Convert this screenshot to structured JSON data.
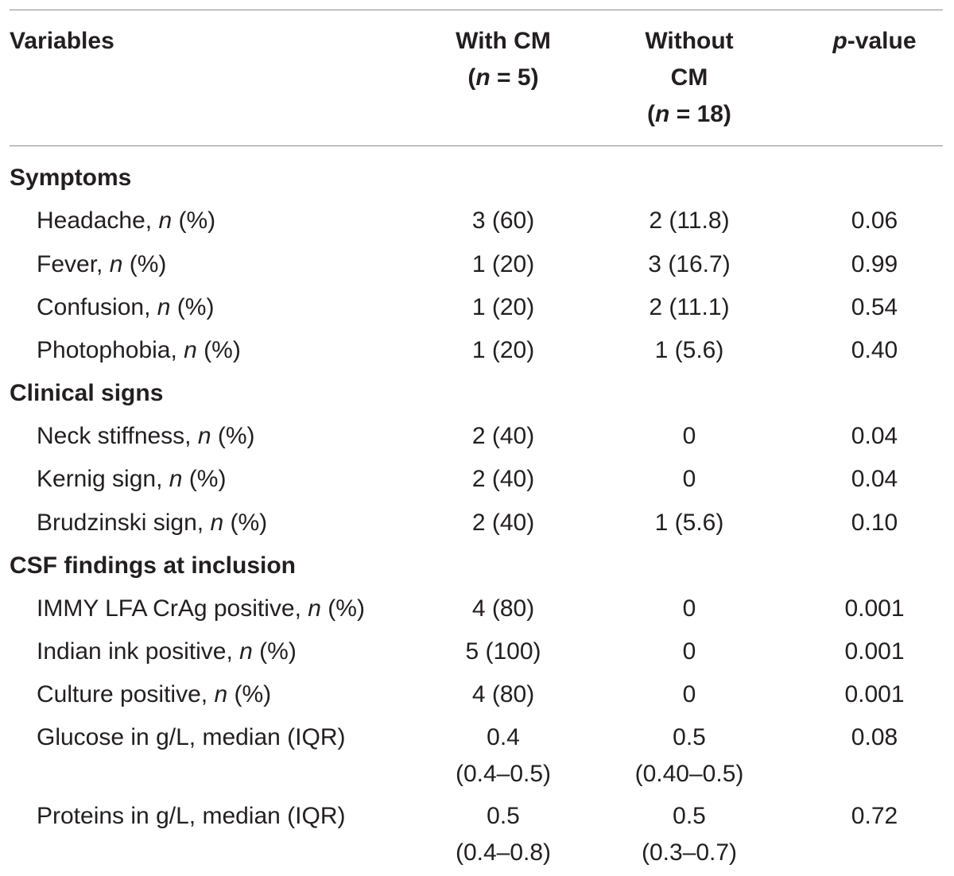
{
  "header": {
    "variables": "Variables",
    "with_cm": {
      "line1": "With CM",
      "n_open": "(",
      "n_var": "n",
      "n_rest": " = 5)"
    },
    "without_cm": {
      "line1": "Without",
      "line2": "CM",
      "n_open": "(",
      "n_var": "n",
      "n_rest": " = 18)"
    },
    "p_value": {
      "p": "p",
      "rest": "-value"
    }
  },
  "sections": [
    {
      "title": "Symptoms",
      "rows": [
        {
          "label": "Headache, ",
          "unit_var": "n",
          "unit_rest": " (%)",
          "with_cm": "3 (60)",
          "without_cm": "2 (11.8)",
          "p": "0.06"
        },
        {
          "label": "Fever, ",
          "unit_var": "n",
          "unit_rest": " (%)",
          "with_cm": "1 (20)",
          "without_cm": "3 (16.7)",
          "p": "0.99"
        },
        {
          "label": "Confusion, ",
          "unit_var": "n",
          "unit_rest": " (%)",
          "with_cm": "1 (20)",
          "without_cm": "2 (11.1)",
          "p": "0.54"
        },
        {
          "label": "Photophobia, ",
          "unit_var": "n",
          "unit_rest": " (%)",
          "with_cm": "1 (20)",
          "without_cm": "1 (5.6)",
          "p": "0.40"
        }
      ]
    },
    {
      "title": "Clinical signs",
      "rows": [
        {
          "label": "Neck stiffness, ",
          "unit_var": "n",
          "unit_rest": " (%)",
          "with_cm": "2 (40)",
          "without_cm": "0",
          "p": "0.04"
        },
        {
          "label": "Kernig sign, ",
          "unit_var": "n",
          "unit_rest": " (%)",
          "with_cm": "2 (40)",
          "without_cm": "0",
          "p": "0.04"
        },
        {
          "label": "Brudzinski sign, ",
          "unit_var": "n",
          "unit_rest": " (%)",
          "with_cm": "2 (40)",
          "without_cm": "1 (5.6)",
          "p": "0.10"
        }
      ]
    },
    {
      "title": "CSF findings at inclusion",
      "rows": [
        {
          "label": "IMMY LFA CrAg positive, ",
          "unit_var": "n",
          "unit_rest": " (%)",
          "with_cm": "4 (80)",
          "without_cm": "0",
          "p": "0.001"
        },
        {
          "label": "Indian ink positive, ",
          "unit_var": "n",
          "unit_rest": " (%)",
          "with_cm": "5 (100)",
          "without_cm": "0",
          "p": "0.001"
        },
        {
          "label": "Culture positive, ",
          "unit_var": "n",
          "unit_rest": " (%)",
          "with_cm": "4 (80)",
          "without_cm": "0",
          "p": "0.001"
        },
        {
          "label": "Glucose in g/L, median (IQR)",
          "with_cm": "0.4",
          "with_cm_2": "(0.4–0.5)",
          "without_cm": "0.5",
          "without_cm_2": "(0.40–0.5)",
          "p": "0.08"
        },
        {
          "label": "Proteins in g/L, median (IQR)",
          "with_cm": "0.5",
          "with_cm_2": "(0.4–0.8)",
          "without_cm": "0.5",
          "without_cm_2": "(0.3–0.7)",
          "p": "0.72"
        }
      ]
    }
  ]
}
